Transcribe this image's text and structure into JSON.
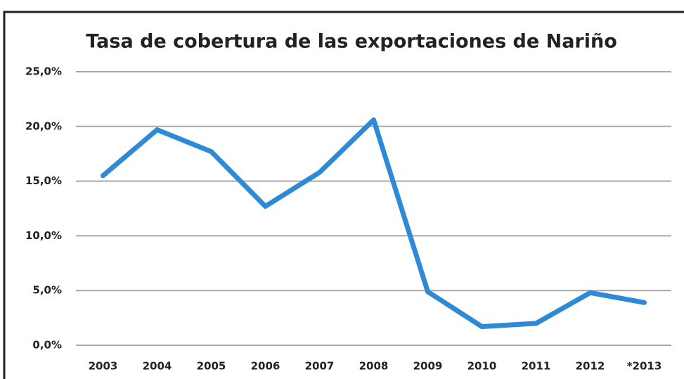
{
  "chart_data": {
    "type": "line",
    "title": "Tasa de cobertura de las exportaciones de Nariño",
    "categories": [
      "2003",
      "2004",
      "2005",
      "2006",
      "2007",
      "2008",
      "2009",
      "2010",
      "2011",
      "2012",
      "*2013"
    ],
    "values": [
      15.5,
      19.7,
      17.7,
      12.7,
      15.8,
      20.6,
      4.9,
      1.7,
      2.0,
      4.8,
      3.9
    ],
    "color": "#2e8ad6",
    "ylim": [
      0,
      25
    ],
    "yticks": [
      {
        "value": 0,
        "label": "0,0%"
      },
      {
        "value": 5,
        "label": "5,0%"
      },
      {
        "value": 10,
        "label": "10,0%"
      },
      {
        "value": 15,
        "label": "15,0%"
      },
      {
        "value": 20,
        "label": "20,0%"
      },
      {
        "value": 25,
        "label": "25,0%"
      }
    ],
    "grid": true
  }
}
